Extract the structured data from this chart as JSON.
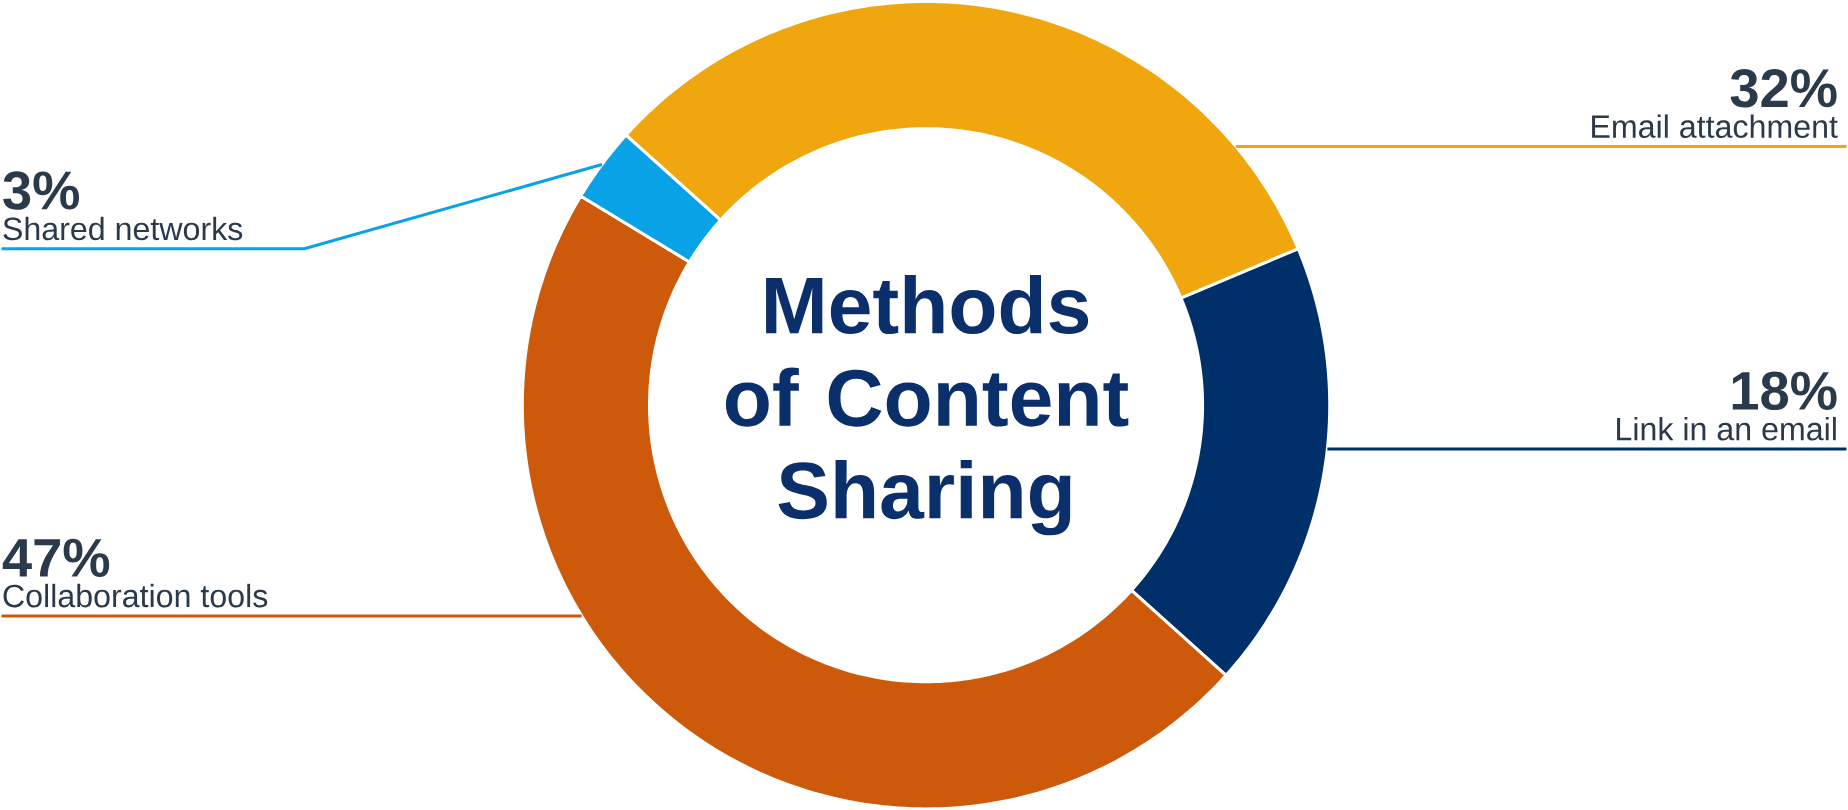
{
  "chart_data": {
    "type": "donut",
    "title": "Methods of Content Sharing",
    "categories": [
      "Email attachment",
      "Link in an email",
      "Collaboration tools",
      "Shared networks"
    ],
    "values": [
      32,
      18,
      47,
      3
    ],
    "value_labels": [
      "32%",
      "18%",
      "47%",
      "3%"
    ],
    "colors": [
      "#f0a70f",
      "#003069",
      "#cc5a0a",
      "#0aa2e6"
    ]
  }
}
